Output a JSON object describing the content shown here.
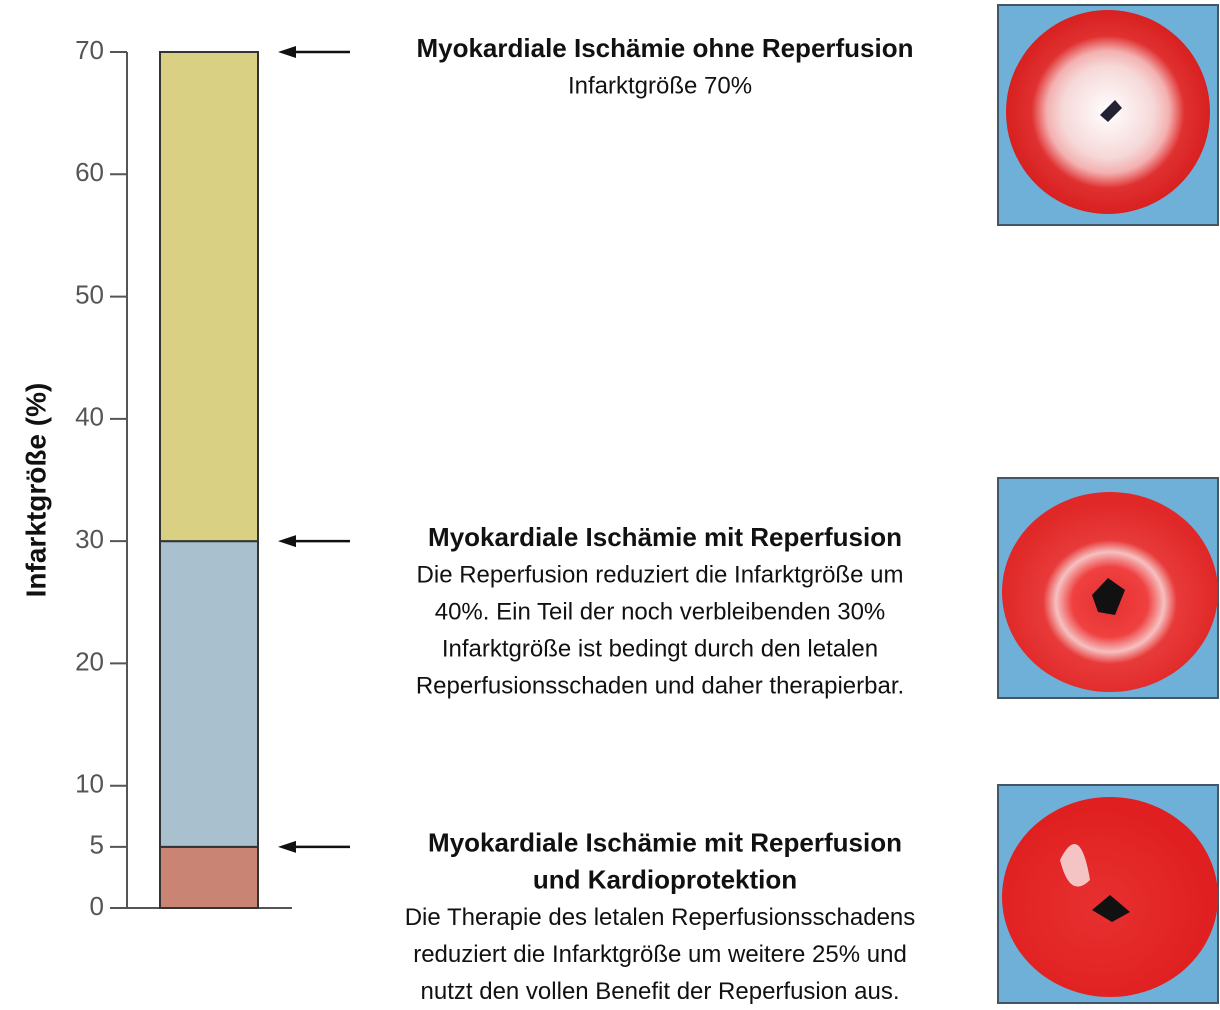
{
  "chart_data": {
    "type": "stacked-bar",
    "y_label": "Infarktgröße (%)",
    "categories": [
      null
    ],
    "series": [
      {
        "color": "#c98473",
        "values": [
          5
        ]
      },
      {
        "color": "#a9c1cf",
        "values": [
          25
        ]
      },
      {
        "color": "#d9d084",
        "values": [
          40
        ]
      }
    ],
    "ylim": [
      0,
      70
    ],
    "yticks": [
      0,
      5,
      10,
      20,
      30,
      40,
      50,
      60,
      70
    ],
    "annotations": [
      {
        "title": [
          "Myokardiale Ischämie mit Reperfusion",
          "und Kardioprotektion"
        ],
        "text": [
          "Die Therapie des letalen Reperfusionsschadens",
          "reduziert die Infarktgröße um weitere 25% und",
          "nutzt den vollen Benefit der Reperfusion aus."
        ]
      },
      {
        "title": [
          "Myokardiale Ischämie mit Reperfusion"
        ],
        "text": [
          "Die Reperfusion reduziert die Infarktgröße um",
          "40%. Ein Teil der noch verbleibenden 30%",
          "Infarktgröße ist bedingt durch den letalen",
          "Reperfusionsschaden und daher therapierbar."
        ]
      },
      {
        "title": [
          "Myokardiale Ischämie ohne Reperfusion"
        ],
        "text": [
          "Infarktgröße 70%"
        ]
      }
    ]
  }
}
